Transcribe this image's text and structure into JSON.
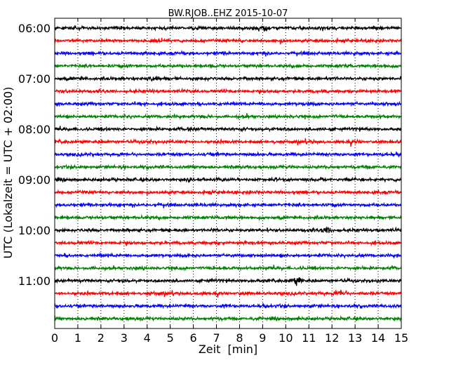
{
  "chart_data": {
    "type": "line",
    "title": "BW.RJOB..EHZ 2015-10-07",
    "xlabel": "Zeit  [min]",
    "ylabel": "UTC (Lokalzeit = UTC + 02:00)",
    "x_range": [
      0,
      15
    ],
    "x_ticks": [
      "0",
      "1",
      "2",
      "3",
      "4",
      "5",
      "6",
      "7",
      "8",
      "9",
      "10",
      "11",
      "12",
      "13",
      "14",
      "15"
    ],
    "y_tick_labels": [
      "06:00",
      "07:00",
      "08:00",
      "09:00",
      "10:00",
      "11:00"
    ],
    "trace_interval_min": 15,
    "traces": [
      {
        "start": "06:00",
        "color": "#000000"
      },
      {
        "start": "06:15",
        "color": "#ff0000"
      },
      {
        "start": "06:30",
        "color": "#0000ff"
      },
      {
        "start": "06:45",
        "color": "#008000"
      },
      {
        "start": "07:00",
        "color": "#000000"
      },
      {
        "start": "07:15",
        "color": "#ff0000"
      },
      {
        "start": "07:30",
        "color": "#0000ff"
      },
      {
        "start": "07:45",
        "color": "#008000"
      },
      {
        "start": "08:00",
        "color": "#000000"
      },
      {
        "start": "08:15",
        "color": "#ff0000"
      },
      {
        "start": "08:30",
        "color": "#0000ff"
      },
      {
        "start": "08:45",
        "color": "#008000"
      },
      {
        "start": "09:00",
        "color": "#000000"
      },
      {
        "start": "09:15",
        "color": "#ff0000"
      },
      {
        "start": "09:30",
        "color": "#0000ff"
      },
      {
        "start": "09:45",
        "color": "#008000"
      },
      {
        "start": "10:00",
        "color": "#000000"
      },
      {
        "start": "10:15",
        "color": "#ff0000"
      },
      {
        "start": "10:30",
        "color": "#0000ff"
      },
      {
        "start": "10:45",
        "color": "#008000"
      },
      {
        "start": "11:00",
        "color": "#000000"
      },
      {
        "start": "11:15",
        "color": "#ff0000"
      },
      {
        "start": "11:30",
        "color": "#0000ff"
      },
      {
        "start": "11:45",
        "color": "#008000"
      }
    ],
    "notable_events": [
      {
        "start": "06:00",
        "minute": 9.0
      },
      {
        "start": "07:00",
        "minute": 4.2
      },
      {
        "start": "10:00",
        "minute": 11.8
      },
      {
        "start": "11:00",
        "minute": 10.5
      },
      {
        "start": "11:15",
        "minute": 12.4
      }
    ],
    "grid": "vertical dotted at each minute"
  }
}
